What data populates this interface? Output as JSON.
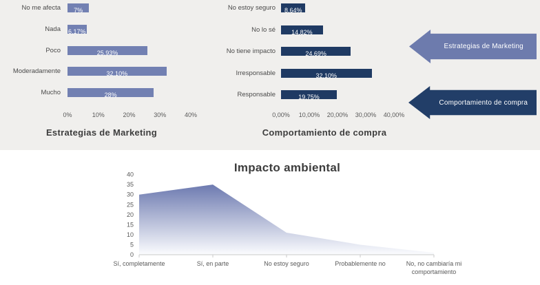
{
  "section_bg": {
    "top": "#f0efed",
    "bottom": "#ffffff"
  },
  "chart_data": [
    {
      "id": "marketing",
      "type": "bar",
      "orientation": "horizontal",
      "title": "Estrategias de Marketing",
      "categories": [
        "No me afecta",
        "Nada",
        "Poco",
        "Moderadamente",
        "Mucho"
      ],
      "values": [
        7,
        6.17,
        25.93,
        32.1,
        28
      ],
      "value_labels": [
        "7%",
        "6,17%",
        "25,93%",
        "32,10%",
        "28%"
      ],
      "xlim": [
        0,
        40
      ],
      "xtick_labels": [
        "0%",
        "10%",
        "20%",
        "30%",
        "40%"
      ],
      "bar_color": "#7280b2",
      "grid": false,
      "legend": "none"
    },
    {
      "id": "compra",
      "type": "bar",
      "orientation": "horizontal",
      "title": "Comportamiento de compra",
      "categories": [
        "No estoy seguro",
        "No lo sé",
        "No tiene impacto",
        "Irresponsable",
        "Responsable"
      ],
      "values": [
        8.64,
        14.82,
        24.69,
        32.1,
        19.75
      ],
      "value_labels": [
        "8,64%",
        "14,82%",
        "24,69%",
        "32,10%",
        "19,75%"
      ],
      "xlim": [
        0,
        40
      ],
      "xtick_labels": [
        "0,00%",
        "10,00%",
        "20,00%",
        "30,00%",
        "40,00%"
      ],
      "bar_color": "#1f3a63",
      "grid": false,
      "legend": "none"
    },
    {
      "id": "impacto",
      "type": "area",
      "title": "Impacto ambiental",
      "categories": [
        "Sí, completamente",
        "Sí, en parte",
        "No estoy seguro",
        "Probablemente no",
        "No, no cambiaría mi comportamiento"
      ],
      "values": [
        30,
        35,
        11,
        5,
        1
      ],
      "ylim": [
        0,
        40
      ],
      "ytick_values": [
        0,
        5,
        10,
        15,
        20,
        25,
        30,
        35,
        40
      ],
      "ytick_labels": [
        "0",
        "5",
        "10",
        "15",
        "20",
        "25",
        "30",
        "35",
        "40"
      ],
      "fill_gradient_top": "#6d7ab0",
      "fill_gradient_bottom": "#fbfcfe",
      "axis_color": "#c8c8c8",
      "grid": false,
      "legend": "none"
    }
  ],
  "callouts": [
    {
      "label": "Estrategias de Marketing",
      "color": "#6d7bad",
      "direction": "left"
    },
    {
      "label": "Comportamiento de compra",
      "color": "#223e68",
      "direction": "left"
    }
  ]
}
